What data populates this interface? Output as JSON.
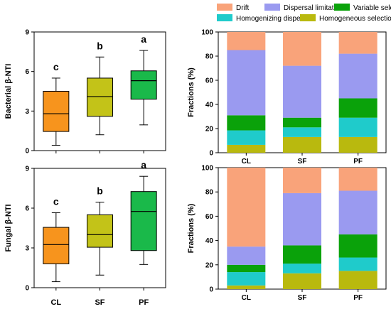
{
  "chart_data": [
    {
      "type": "box",
      "panel": "bacterial-box",
      "ylabel": "Bacterial β-NTI",
      "ylim": [
        0,
        9
      ],
      "yticks": [
        0,
        3,
        6,
        9
      ],
      "categories": [
        "CL",
        "SF",
        "PF"
      ],
      "show_xlabels": false,
      "colors": [
        "#f7941d",
        "#c3c318",
        "#1ab94a"
      ],
      "boxes": [
        {
          "name": "CL",
          "min": 0.4,
          "q1": 1.45,
          "median": 2.8,
          "q3": 4.5,
          "max": 5.5,
          "letter": "c"
        },
        {
          "name": "SF",
          "min": 1.2,
          "q1": 2.6,
          "median": 4.1,
          "q3": 5.5,
          "max": 7.1,
          "letter": "b"
        },
        {
          "name": "PF",
          "min": 1.95,
          "q1": 3.9,
          "median": 5.3,
          "q3": 6.05,
          "max": 7.6,
          "letter": "a"
        }
      ]
    },
    {
      "type": "box",
      "panel": "fungal-box",
      "ylabel": "Fungal β-NTI",
      "ylim": [
        0,
        9
      ],
      "yticks": [
        0,
        3,
        6,
        9
      ],
      "categories": [
        "CL",
        "SF",
        "PF"
      ],
      "show_xlabels": true,
      "category_colors": [
        "#f7a21b",
        "#b5b516",
        "#22b14c"
      ],
      "colors": [
        "#f7941d",
        "#c3c318",
        "#1ab94a"
      ],
      "boxes": [
        {
          "name": "CL",
          "min": 0.45,
          "q1": 1.8,
          "median": 3.25,
          "q3": 4.55,
          "max": 5.65,
          "letter": "c"
        },
        {
          "name": "SF",
          "min": 0.95,
          "q1": 3.05,
          "median": 4.0,
          "q3": 5.5,
          "max": 6.45,
          "letter": "b"
        },
        {
          "name": "PF",
          "min": 1.75,
          "q1": 2.8,
          "median": 5.75,
          "q3": 7.25,
          "max": 8.4,
          "letter": "a"
        }
      ]
    },
    {
      "type": "bar",
      "stacked": true,
      "panel": "bacterial-stack",
      "ylabel": "Fractions (%)",
      "ylim": [
        0,
        100
      ],
      "yticks": [
        0,
        20,
        40,
        60,
        80,
        100
      ],
      "categories": [
        "CL",
        "SF",
        "PF"
      ],
      "series": [
        {
          "name": "Homogeneous selection",
          "color": "#b9b90e",
          "values": [
            6.5,
            13,
            13
          ]
        },
        {
          "name": "Homogenizing dispersal",
          "color": "#1fcbcb",
          "values": [
            12,
            8,
            16
          ]
        },
        {
          "name": "Variable selection",
          "color": "#0aa20a",
          "values": [
            12.5,
            8,
            16
          ]
        },
        {
          "name": "Dispersal limitation",
          "color": "#9a9af0",
          "values": [
            54,
            43,
            37
          ]
        },
        {
          "name": "Drift",
          "color": "#f9a37a",
          "values": [
            15,
            28,
            18
          ]
        }
      ]
    },
    {
      "type": "bar",
      "stacked": true,
      "panel": "fungal-stack",
      "ylabel": "Fractions (%)",
      "ylim": [
        0,
        100
      ],
      "yticks": [
        0,
        20,
        40,
        60,
        80,
        100
      ],
      "categories": [
        "CL",
        "SF",
        "PF"
      ],
      "series": [
        {
          "name": "Homogeneous selection",
          "color": "#b9b90e",
          "values": [
            3,
            13,
            15
          ]
        },
        {
          "name": "Homogenizing dispersal",
          "color": "#1fcbcb",
          "values": [
            11,
            8,
            11
          ]
        },
        {
          "name": "Variable selection",
          "color": "#0aa20a",
          "values": [
            6,
            15,
            19
          ]
        },
        {
          "name": "Dispersal limitation",
          "color": "#9a9af0",
          "values": [
            15,
            43,
            36
          ]
        },
        {
          "name": "Drift",
          "color": "#f9a37a",
          "values": [
            65,
            21,
            19
          ]
        }
      ]
    }
  ],
  "legend": {
    "rows": [
      [
        "Drift",
        "Dispersal limitation",
        "Variable selection"
      ],
      [
        "Homogenizing dispersal",
        "Homogeneous selection"
      ]
    ]
  }
}
